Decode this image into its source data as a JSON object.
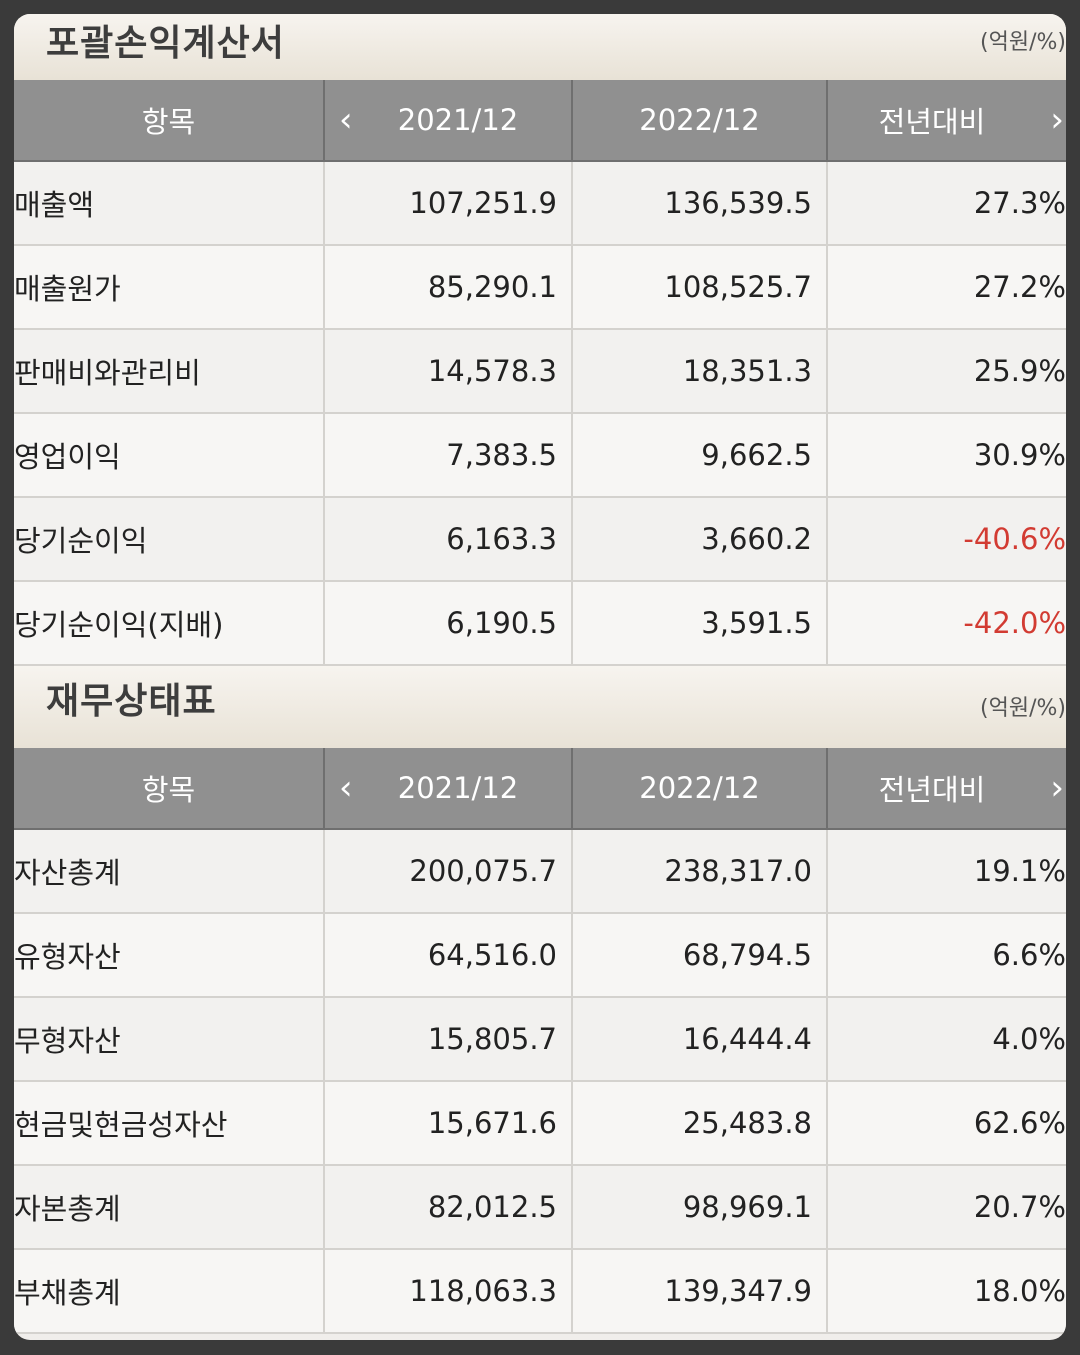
{
  "unit_label": "(억원/%)",
  "nav": {
    "prev_icon": "‹",
    "next_icon": "›"
  },
  "income_statement": {
    "title": "포괄손익계산서",
    "columns": [
      "항목",
      "2021/12",
      "2022/12",
      "전년대비"
    ],
    "rows": [
      {
        "label": "매출액",
        "v2021": "107,251.9",
        "v2022": "136,539.5",
        "yoy": "27.3%",
        "negative": false
      },
      {
        "label": "매출원가",
        "v2021": "85,290.1",
        "v2022": "108,525.7",
        "yoy": "27.2%",
        "negative": false
      },
      {
        "label": "판매비와관리비",
        "v2021": "14,578.3",
        "v2022": "18,351.3",
        "yoy": "25.9%",
        "negative": false
      },
      {
        "label": "영업이익",
        "v2021": "7,383.5",
        "v2022": "9,662.5",
        "yoy": "30.9%",
        "negative": false
      },
      {
        "label": "당기순이익",
        "v2021": "6,163.3",
        "v2022": "3,660.2",
        "yoy": "-40.6%",
        "negative": true
      },
      {
        "label": "당기순이익(지배)",
        "v2021": "6,190.5",
        "v2022": "3,591.5",
        "yoy": "-42.0%",
        "negative": true
      }
    ]
  },
  "balance_sheet": {
    "title": "재무상태표",
    "columns": [
      "항목",
      "2021/12",
      "2022/12",
      "전년대비"
    ],
    "rows": [
      {
        "label": "자산총계",
        "v2021": "200,075.7",
        "v2022": "238,317.0",
        "yoy": "19.1%",
        "negative": false
      },
      {
        "label": "유형자산",
        "v2021": "64,516.0",
        "v2022": "68,794.5",
        "yoy": "6.6%",
        "negative": false
      },
      {
        "label": "무형자산",
        "v2021": "15,805.7",
        "v2022": "16,444.4",
        "yoy": "4.0%",
        "negative": false
      },
      {
        "label": "현금및현금성자산",
        "v2021": "15,671.6",
        "v2022": "25,483.8",
        "yoy": "62.6%",
        "negative": false
      },
      {
        "label": "자본총계",
        "v2021": "82,012.5",
        "v2022": "98,969.1",
        "yoy": "20.7%",
        "negative": false
      },
      {
        "label": "부채총계",
        "v2021": "118,063.3",
        "v2022": "139,347.9",
        "yoy": "18.0%",
        "negative": false
      }
    ]
  },
  "colors": {
    "header_bg": "#909090",
    "negative": "#d23b32",
    "title_bg": "#ece6db"
  }
}
